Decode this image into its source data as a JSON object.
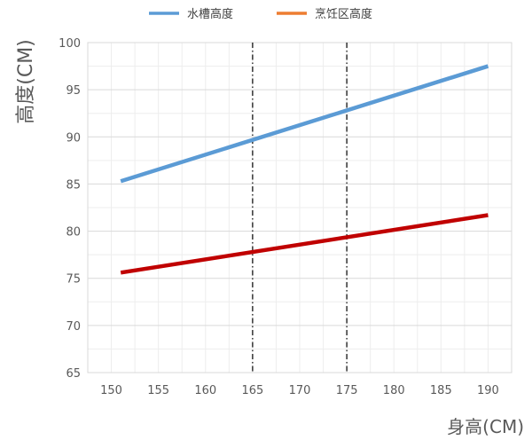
{
  "chart_data": {
    "type": "line",
    "title": "",
    "xlabel": "身高(CM)",
    "ylabel": "高度(CM)",
    "xlim": [
      147.5,
      192.5
    ],
    "ylim": [
      65,
      100
    ],
    "x_ticks": [
      150,
      155,
      160,
      165,
      170,
      175,
      180,
      185,
      190
    ],
    "y_ticks": [
      65,
      70,
      75,
      80,
      85,
      90,
      95,
      100
    ],
    "grid": true,
    "legend_position": "top",
    "series": [
      {
        "name": "水槽高度",
        "color": "#5b9bd5",
        "x": [
          151,
          190
        ],
        "y": [
          85.3,
          97.5
        ]
      },
      {
        "name": "烹饪区高度",
        "color": "#c00000",
        "legend_color": "#ed7d31",
        "x": [
          151,
          190
        ],
        "y": [
          75.6,
          81.7
        ]
      }
    ],
    "reference_lines": [
      {
        "x": 165,
        "style": "dash-dot",
        "color": "#000000"
      },
      {
        "x": 175,
        "style": "dash-dot",
        "color": "#000000"
      }
    ]
  }
}
